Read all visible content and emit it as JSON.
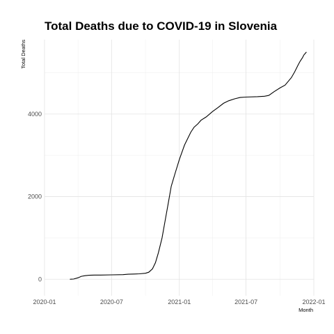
{
  "chart_data": {
    "type": "line",
    "title": "Total Deaths due to COVID-19 in Slovenia",
    "xlabel": "Month",
    "ylabel": "Total Deaths",
    "x_ticks": [
      "2020-01",
      "2020-07",
      "2021-01",
      "2021-07",
      "2022-01"
    ],
    "y_ticks": [
      0,
      2000,
      4000
    ],
    "xlim": [
      "2020-01-01",
      "2022-01-01"
    ],
    "ylim": [
      -400,
      5800
    ],
    "grid": true,
    "series": [
      {
        "x": [
          "2020-03-10",
          "2020-03-20",
          "2020-04-01",
          "2020-04-10",
          "2020-04-20",
          "2020-05-01",
          "2020-05-15",
          "2020-06-01",
          "2020-07-01",
          "2020-08-01",
          "2020-08-15",
          "2020-09-01",
          "2020-09-15",
          "2020-10-01",
          "2020-10-10",
          "2020-10-20",
          "2020-10-28",
          "2020-11-05",
          "2020-11-15",
          "2020-11-25",
          "2020-12-01",
          "2020-12-10",
          "2020-12-20",
          "2021-01-01",
          "2021-01-15",
          "2021-02-01",
          "2021-02-10",
          "2021-02-20",
          "2021-03-01",
          "2021-03-15",
          "2021-04-01",
          "2021-04-15",
          "2021-05-01",
          "2021-05-15",
          "2021-06-01",
          "2021-06-15",
          "2021-07-01",
          "2021-08-01",
          "2021-08-20",
          "2021-09-01",
          "2021-09-15",
          "2021-10-01",
          "2021-10-15",
          "2021-11-01",
          "2021-11-10",
          "2021-11-20",
          "2021-11-25",
          "2021-12-01",
          "2021-12-05",
          "2021-12-12"
        ],
        "values": [
          0,
          5,
          35,
          70,
          85,
          95,
          100,
          100,
          105,
          110,
          120,
          125,
          130,
          145,
          170,
          250,
          400,
          640,
          1000,
          1500,
          1800,
          2250,
          2550,
          2900,
          3250,
          3560,
          3680,
          3760,
          3850,
          3930,
          4060,
          4150,
          4260,
          4320,
          4370,
          4400,
          4410,
          4420,
          4430,
          4450,
          4540,
          4630,
          4700,
          4880,
          5020,
          5200,
          5280,
          5360,
          5430,
          5500
        ]
      }
    ]
  }
}
